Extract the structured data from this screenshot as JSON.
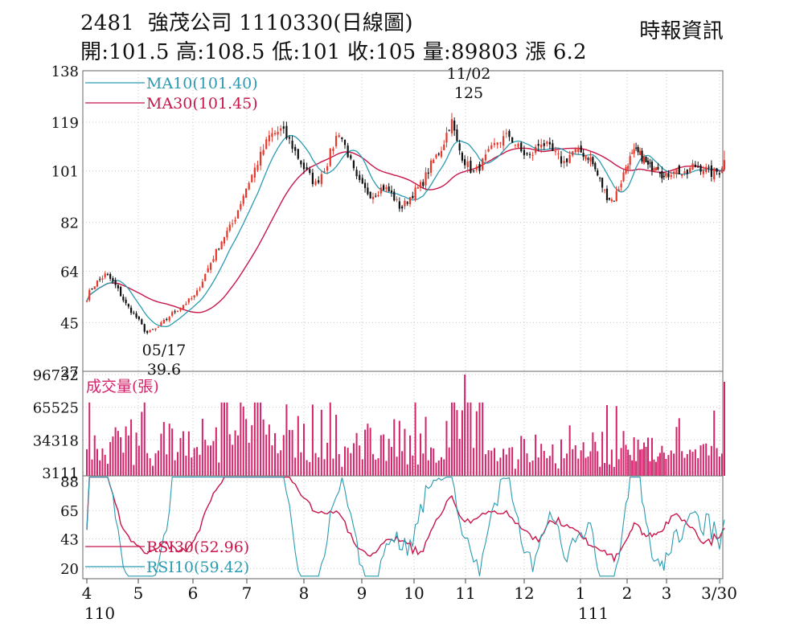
{
  "header": {
    "code": "2481",
    "name": "強茂公司",
    "date": "1110330",
    "chart_kind": "(日線圖)",
    "source": "時報資訊",
    "ohlc": "開:101.5 高:108.5 低:101 收:105 量:89803 漲 6.2"
  },
  "colors": {
    "up": "#e8372b",
    "down": "#111111",
    "ma10": "#2a9bb0",
    "ma30": "#c8164a",
    "volume": "#d4236a",
    "rsi10": "#2a9bb0",
    "rsi30": "#c8164a",
    "grid": "#c8c8c8"
  },
  "chart_data": [
    {
      "type": "candlestick",
      "panel": "price",
      "y_ticks": [
        27,
        45,
        64,
        82,
        101,
        119,
        138
      ],
      "ylim": [
        27,
        138
      ],
      "x_ticks": [
        "4",
        "5",
        "6",
        "7",
        "8",
        "9",
        "10",
        "11",
        "12",
        "1",
        "2",
        "3",
        "3/30"
      ],
      "year_labels": [
        {
          "month": "4",
          "label": "110"
        },
        {
          "month": "1",
          "label": "111"
        }
      ],
      "legend": [
        {
          "key": "ma10",
          "text": "MA10(101.40)"
        },
        {
          "key": "ma30",
          "text": "MA30(101.45)"
        }
      ],
      "annotations": [
        {
          "date": "11/02",
          "value": "125",
          "text_top": "11/02",
          "text_bottom": "125",
          "kind": "high"
        },
        {
          "date": "05/17",
          "value": "39.6",
          "text_top": "05/17",
          "text_bottom": "39.6",
          "kind": "low"
        }
      ],
      "close_anchors": [
        [
          0,
          54
        ],
        [
          0.08,
          57.5
        ],
        [
          0.2,
          60
        ],
        [
          0.38,
          63
        ],
        [
          0.58,
          58
        ],
        [
          0.75,
          52
        ],
        [
          1.0,
          46
        ],
        [
          1.15,
          41
        ],
        [
          1.35,
          43
        ],
        [
          1.6,
          48
        ],
        [
          1.85,
          52
        ],
        [
          2.05,
          55
        ],
        [
          2.3,
          66
        ],
        [
          2.55,
          76
        ],
        [
          2.75,
          82
        ],
        [
          2.95,
          93
        ],
        [
          3.1,
          100
        ],
        [
          3.25,
          107
        ],
        [
          3.4,
          114
        ],
        [
          3.6,
          116
        ],
        [
          3.75,
          112
        ],
        [
          3.85,
          108
        ],
        [
          4.0,
          102
        ],
        [
          4.2,
          96
        ],
        [
          4.4,
          104
        ],
        [
          4.6,
          116
        ],
        [
          4.75,
          108
        ],
        [
          4.9,
          98
        ],
        [
          5.05,
          94
        ],
        [
          5.2,
          92
        ],
        [
          5.4,
          95
        ],
        [
          5.55,
          93
        ],
        [
          5.75,
          87
        ],
        [
          5.95,
          92
        ],
        [
          6.15,
          96
        ],
        [
          6.35,
          104
        ],
        [
          6.55,
          110
        ],
        [
          6.72,
          120
        ],
        [
          6.85,
          110
        ],
        [
          7.0,
          104
        ],
        [
          7.15,
          100
        ],
        [
          7.35,
          106
        ],
        [
          7.55,
          112
        ],
        [
          7.75,
          114
        ],
        [
          7.95,
          108
        ],
        [
          8.1,
          106
        ],
        [
          8.3,
          112
        ],
        [
          8.5,
          108
        ],
        [
          8.7,
          104
        ],
        [
          8.85,
          108
        ],
        [
          9.0,
          108
        ],
        [
          9.2,
          106
        ],
        [
          9.4,
          98
        ],
        [
          9.55,
          92
        ],
        [
          9.7,
          90
        ],
        [
          9.85,
          96
        ],
        [
          10.0,
          104
        ],
        [
          10.2,
          108
        ],
        [
          10.4,
          106
        ],
        [
          10.55,
          102
        ],
        [
          10.75,
          104
        ],
        [
          10.95,
          98
        ],
        [
          11.15,
          102
        ],
        [
          11.35,
          99
        ],
        [
          11.5,
          103
        ],
        [
          11.7,
          102
        ],
        [
          11.85,
          100
        ],
        [
          12.0,
          101
        ],
        [
          12.1,
          105
        ]
      ],
      "ma10_end": 101.4,
      "ma30_end": 101.45
    },
    {
      "type": "bar",
      "panel": "volume",
      "label": "成交量(張)",
      "y_ticks": [
        3111,
        34318,
        65525,
        96732
      ],
      "ylim": [
        0,
        96732
      ],
      "last_value": 89803
    },
    {
      "type": "line",
      "panel": "rsi",
      "y_ticks": [
        20,
        43,
        65,
        88
      ],
      "ylim": [
        12,
        92
      ],
      "legend": [
        {
          "key": "rsi30",
          "text": "RSI30(52.96)"
        },
        {
          "key": "rsi10",
          "text": "RSI10(59.42)"
        }
      ],
      "rsi10_end": 59.42,
      "rsi30_end": 52.96
    }
  ]
}
